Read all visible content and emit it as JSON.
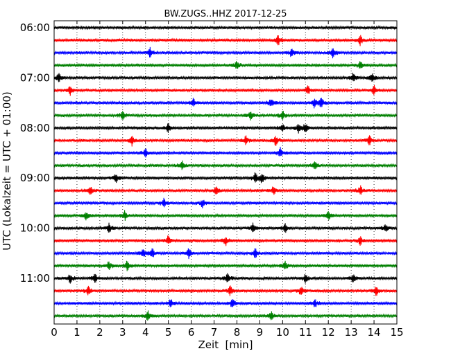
{
  "chart_data": {
    "type": "line",
    "title": "BW.ZUGS..HHZ 2017-12-25",
    "xlabel": "Zeit  [min]",
    "ylabel": "UTC (Lokalzeit = UTC + 01:00)",
    "xlim": [
      0,
      15
    ],
    "x_ticks": [
      "0",
      "1",
      "2",
      "3",
      "4",
      "5",
      "6",
      "7",
      "8",
      "9",
      "10",
      "11",
      "12",
      "13",
      "14",
      "15"
    ],
    "y_ticks": [
      {
        "label": "06:00",
        "row": 0
      },
      {
        "label": "07:00",
        "row": 4
      },
      {
        "label": "08:00",
        "row": 8
      },
      {
        "label": "09:00",
        "row": 12
      },
      {
        "label": "10:00",
        "row": 16
      },
      {
        "label": "11:00",
        "row": 20
      }
    ],
    "row_interval_minutes": 15,
    "grid": "vertical-dotted",
    "colors": [
      "#000000",
      "#ff0000",
      "#0000ff",
      "#008000"
    ],
    "series": [
      {
        "row": 0,
        "color_index": 0,
        "events": []
      },
      {
        "row": 1,
        "color_index": 1,
        "events": [
          9.8,
          13.4
        ]
      },
      {
        "row": 2,
        "color_index": 2,
        "events": [
          4.2,
          10.4,
          12.2
        ]
      },
      {
        "row": 3,
        "color_index": 3,
        "events": [
          8.0,
          13.4
        ]
      },
      {
        "row": 4,
        "color_index": 0,
        "events": [
          0.2,
          13.1,
          13.9
        ]
      },
      {
        "row": 5,
        "color_index": 1,
        "events": [
          0.7,
          11.1,
          14.0
        ]
      },
      {
        "row": 6,
        "color_index": 2,
        "events": [
          6.1,
          9.5,
          11.4,
          11.7
        ]
      },
      {
        "row": 7,
        "color_index": 3,
        "events": [
          3.0,
          8.6,
          10.0
        ]
      },
      {
        "row": 8,
        "color_index": 0,
        "events": [
          5.0,
          10.0,
          10.7,
          11.0
        ]
      },
      {
        "row": 9,
        "color_index": 1,
        "events": [
          3.4,
          8.4,
          9.7,
          13.8
        ]
      },
      {
        "row": 10,
        "color_index": 2,
        "events": [
          4.0,
          9.9
        ]
      },
      {
        "row": 11,
        "color_index": 3,
        "events": [
          5.6,
          11.4
        ]
      },
      {
        "row": 12,
        "color_index": 0,
        "events": [
          2.7,
          8.8,
          9.1
        ]
      },
      {
        "row": 13,
        "color_index": 1,
        "events": [
          1.6,
          7.1,
          9.6,
          13.4
        ]
      },
      {
        "row": 14,
        "color_index": 2,
        "events": [
          4.8,
          6.5
        ]
      },
      {
        "row": 15,
        "color_index": 3,
        "events": [
          1.4,
          3.1,
          12.0
        ]
      },
      {
        "row": 16,
        "color_index": 0,
        "events": [
          2.4,
          8.7,
          10.1,
          14.5
        ]
      },
      {
        "row": 17,
        "color_index": 1,
        "events": [
          5.0,
          7.5,
          13.4
        ]
      },
      {
        "row": 18,
        "color_index": 2,
        "events": [
          3.9,
          4.3,
          5.9,
          8.8
        ]
      },
      {
        "row": 19,
        "color_index": 3,
        "events": [
          2.4,
          3.2,
          10.1
        ]
      },
      {
        "row": 20,
        "color_index": 0,
        "events": [
          0.7,
          1.8,
          7.6,
          11.0,
          13.1
        ]
      },
      {
        "row": 21,
        "color_index": 1,
        "events": [
          1.5,
          7.7,
          10.8,
          14.1
        ]
      },
      {
        "row": 22,
        "color_index": 2,
        "events": [
          5.1,
          7.8,
          11.4
        ]
      },
      {
        "row": 23,
        "color_index": 3,
        "events": [
          4.1,
          9.5
        ]
      }
    ]
  }
}
